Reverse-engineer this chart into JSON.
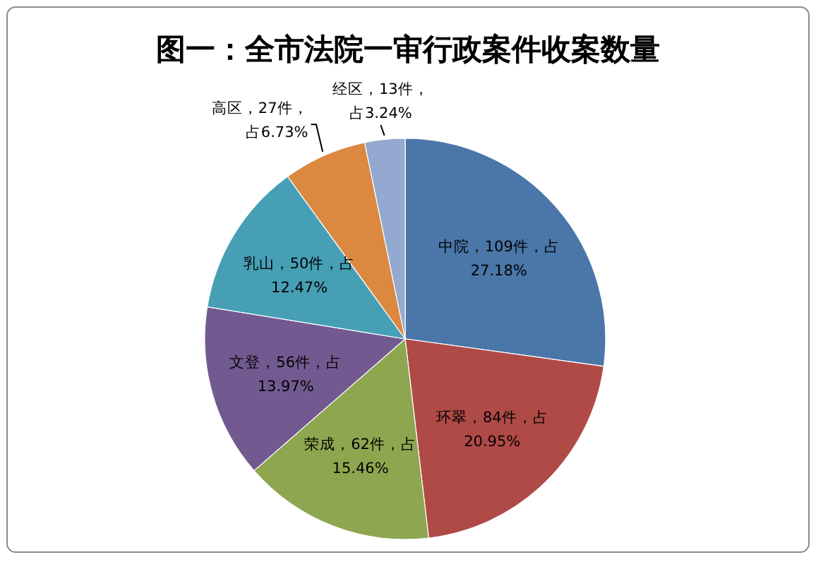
{
  "chart_data": {
    "type": "pie",
    "title": "图一：全市法院一审行政案件收案数量",
    "categories": [
      "中院",
      "环翠",
      "荣成",
      "文登",
      "乳山",
      "高区",
      "经区"
    ],
    "values": [
      109,
      84,
      62,
      56,
      50,
      27,
      13
    ],
    "colors": [
      "#4a76a8",
      "#b04a47",
      "#8ea64f",
      "#725a91",
      "#469fb5",
      "#db8841",
      "#94a9d0"
    ],
    "value_labels": [
      "，109件，占27.18%",
      "，84件，占20.95%",
      "，62件，占15.46%",
      "，56件，占13.97%",
      "，50件，占12.47%",
      "，27件，占6.73%",
      "，13件，占3.24%"
    ]
  }
}
